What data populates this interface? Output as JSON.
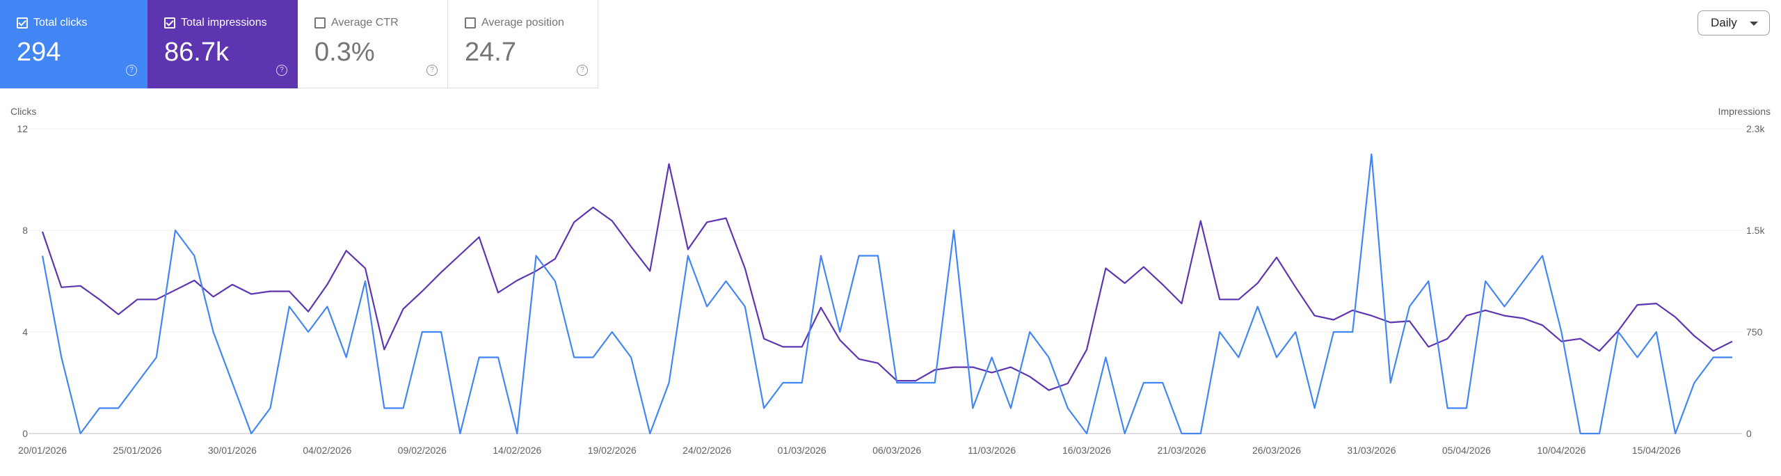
{
  "metrics": {
    "clicks": {
      "label": "Total clicks",
      "value": "294",
      "checked": true,
      "color": "#4285f4"
    },
    "impressions": {
      "label": "Total impressions",
      "value": "86.7k",
      "checked": true,
      "color": "#5e35b1"
    },
    "ctr": {
      "label": "Average CTR",
      "value": "0.3%",
      "checked": false
    },
    "position": {
      "label": "Average position",
      "value": "24.7",
      "checked": false
    }
  },
  "period_select": {
    "value": "Daily"
  },
  "chart_data": {
    "type": "line",
    "left_axis_label": "Clicks",
    "right_axis_label": "Impressions",
    "left_ticks": [
      "0",
      "4",
      "8",
      "12"
    ],
    "right_ticks": [
      "0",
      "750",
      "1.5k",
      "2.3k"
    ],
    "ylim_left": [
      0,
      12
    ],
    "ylim_right": [
      0,
      2250
    ],
    "x_tick_labels": [
      "20/01/2026",
      "25/01/2026",
      "30/01/2026",
      "04/02/2026",
      "09/02/2026",
      "14/02/2026",
      "19/02/2026",
      "24/02/2026",
      "01/03/2026",
      "06/03/2026",
      "11/03/2026",
      "16/03/2026",
      "21/03/2026",
      "26/03/2026",
      "31/03/2026",
      "05/04/2026",
      "10/04/2026",
      "15/04/2026"
    ],
    "x_tick_interval_days": 5,
    "grid": true,
    "series": [
      {
        "name": "Total clicks",
        "axis": "left",
        "color": "#4285f4",
        "values": [
          7,
          3,
          0,
          1,
          1,
          2,
          3,
          8,
          7,
          4,
          2,
          0,
          1,
          5,
          4,
          5,
          3,
          6,
          1,
          1,
          4,
          4,
          0,
          3,
          3,
          0,
          7,
          6,
          3,
          3,
          4,
          3,
          0,
          2,
          7,
          5,
          6,
          5,
          1,
          2,
          2,
          7,
          4,
          7,
          7,
          2,
          2,
          2,
          8,
          1,
          3,
          1,
          4,
          3,
          1,
          0,
          3,
          0,
          2,
          2,
          0,
          0,
          4,
          3,
          5,
          3,
          4,
          1,
          4,
          4,
          11,
          2,
          5,
          6,
          1,
          1,
          6,
          5,
          6,
          7,
          4,
          0,
          0,
          4,
          3,
          4,
          0,
          2,
          3,
          3
        ]
      },
      {
        "name": "Total impressions",
        "axis": "right",
        "color": "#5e35b1",
        "values": [
          1490,
          1080,
          1090,
          990,
          880,
          990,
          990,
          1060,
          1130,
          1010,
          1100,
          1030,
          1050,
          1050,
          900,
          1100,
          1350,
          1220,
          620,
          920,
          1050,
          1190,
          1320,
          1450,
          1040,
          1130,
          1200,
          1290,
          1560,
          1670,
          1570,
          1380,
          1200,
          1990,
          1360,
          1560,
          1590,
          1220,
          700,
          640,
          640,
          930,
          690,
          550,
          520,
          390,
          390,
          470,
          490,
          490,
          450,
          490,
          420,
          320,
          370,
          620,
          1220,
          1110,
          1230,
          1100,
          960,
          1570,
          990,
          990,
          1110,
          1300,
          1080,
          870,
          840,
          910,
          870,
          820,
          830,
          640,
          700,
          870,
          910,
          870,
          850,
          800,
          680,
          700,
          610,
          760,
          950,
          960,
          860,
          720,
          610,
          680
        ]
      }
    ]
  }
}
